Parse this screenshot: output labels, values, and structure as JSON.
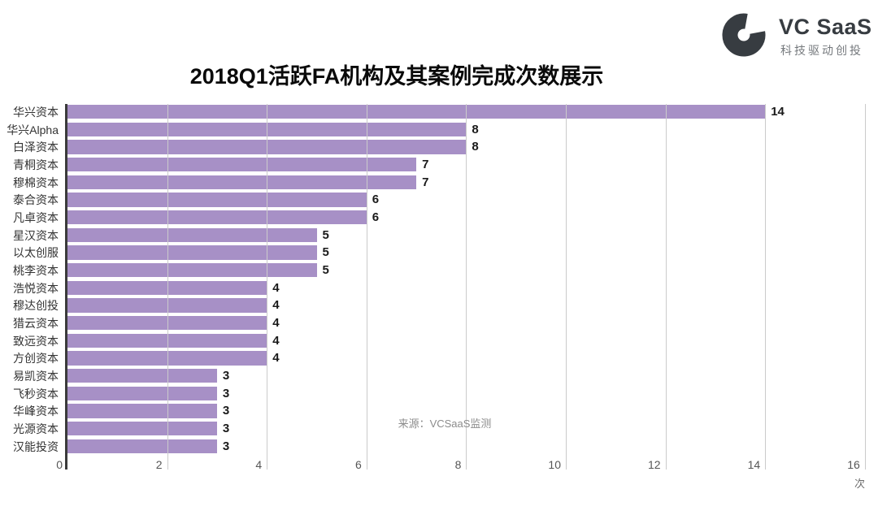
{
  "logo": {
    "name": "VC SaaS",
    "tagline": "科技驱动创投",
    "icon": "vcsaas-c-mark-icon",
    "color": "#373c41",
    "tagline_color": "#75797d"
  },
  "title": "2018Q1活跃FA机构及其案例完成次数展示",
  "source_note": "来源：VCSaaS监测",
  "chart_data": {
    "type": "bar",
    "orientation": "horizontal",
    "title": "2018Q1活跃FA机构及其案例完成次数展示",
    "categories": [
      "华兴资本",
      "华兴Alpha",
      "白泽资本",
      "青桐资本",
      "穆棉资本",
      "泰合资本",
      "凡卓资本",
      "星汉资本",
      "以太创服",
      "桃李资本",
      "浩悦资本",
      "穆达创投",
      "猎云资本",
      "致远资本",
      "方创资本",
      "易凯资本",
      "飞秒资本",
      "华峰资本",
      "光源资本",
      "汉能投资"
    ],
    "values": [
      14,
      8,
      8,
      7,
      7,
      6,
      6,
      5,
      5,
      5,
      4,
      4,
      4,
      4,
      4,
      3,
      3,
      3,
      3,
      3
    ],
    "xlabel": "次",
    "ylabel": "",
    "xlim": [
      0,
      16
    ],
    "xticks": [
      0,
      2,
      4,
      6,
      8,
      10,
      12,
      14,
      16
    ],
    "grid": true,
    "legend": false,
    "value_labels": true,
    "bar_color": "#a790c6",
    "grid_color": "#cbcbcb",
    "axis_color": "#3b3b3b"
  }
}
